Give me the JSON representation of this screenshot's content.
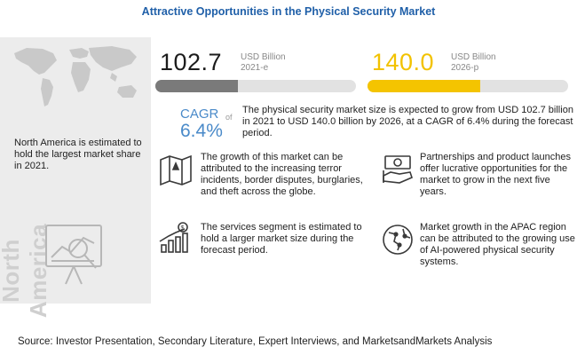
{
  "title": "Attractive Opportunities in the Physical Security Market",
  "left_panel": {
    "region_text": "North America is estimated to hold the largest market share in 2021.",
    "vertical_label": "North America"
  },
  "market_2021": {
    "value": "102.7",
    "unit": "USD Billion",
    "year": "2021-e",
    "bar_fill_fraction": 0.41,
    "bar_color": "#7a7a7a"
  },
  "market_2026": {
    "value": "140.0",
    "unit": "USD Billion",
    "year": "2026-p",
    "bar_fill_fraction": 0.56,
    "bar_color": "#f4c400"
  },
  "cagr": {
    "label": "CAGR",
    "of": "of",
    "value": "6.4%",
    "description": "The physical security market size is expected to grow from USD 102.7 billion in 2021 to USD 140.0 billion by 2026, at a CAGR of 6.4% during the forecast period."
  },
  "insights": [
    {
      "icon": "terror-map-icon",
      "text": "The growth of this market can be attributed to the increasing terror incidents, border disputes, burglaries, and theft across the globe."
    },
    {
      "icon": "partnership-money-icon",
      "text": "Partnerships and product launches offer lucrative opportunities for the market to grow in the next five years."
    },
    {
      "icon": "growth-chart-icon",
      "text": "The services segment is estimated to hold a larger market size during the forecast period."
    },
    {
      "icon": "globe-network-icon",
      "text": "Market growth in the APAC region can be attributed to the growing use of AI-powered physical security systems."
    }
  ],
  "source": "Source: Investor Presentation, Secondary Literature, Expert Interviews, and MarketsandMarkets Analysis",
  "colors": {
    "title": "#1f5fa8",
    "cagr": "#4a8ac9",
    "accent_yellow": "#f4c400",
    "panel_bg": "#ececec"
  }
}
